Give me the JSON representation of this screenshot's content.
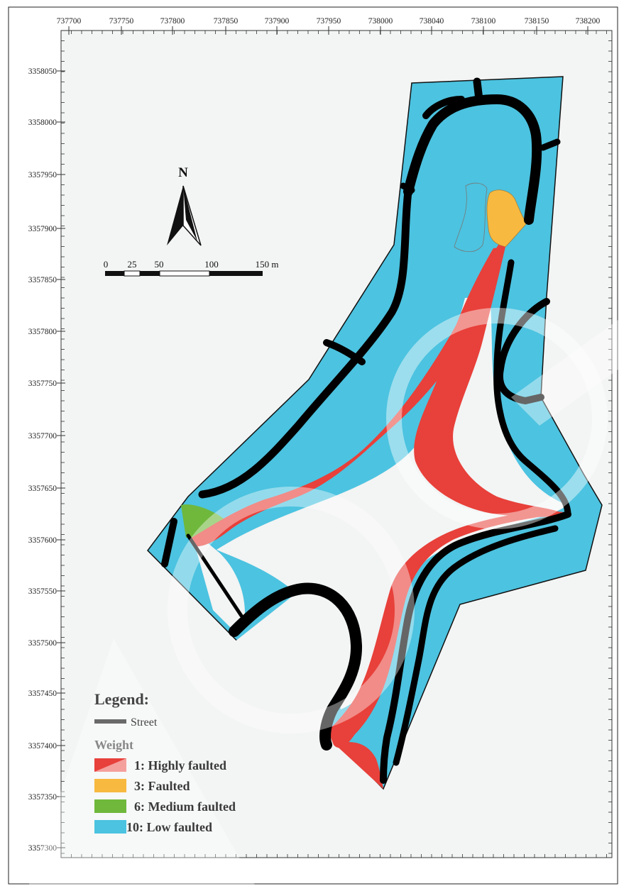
{
  "axes": {
    "x_ticks": [
      "737700",
      "737750",
      "737800",
      "737850",
      "737900",
      "737950",
      "738000",
      "738040",
      "738100",
      "738150",
      "738200"
    ],
    "y_ticks": [
      "3358050",
      "3358000",
      "3357950",
      "3357900",
      "3357850",
      "3357800",
      "3357750",
      "3357700",
      "3357650",
      "3357600",
      "3357550",
      "3357500",
      "3357450",
      "3357400",
      "3357350",
      "3357300"
    ]
  },
  "north_arrow": {
    "label": "N"
  },
  "scale_bar": {
    "labels": [
      "0",
      "25",
      "50",
      "100",
      "150 m"
    ]
  },
  "legend": {
    "title": "Legend:",
    "street_label": "Street",
    "weight_title": "Weight",
    "items": [
      {
        "label": "1: Highly faulted",
        "color": "#e8403a"
      },
      {
        "label": "3: Faulted",
        "color": "#f7b93f"
      },
      {
        "label": "6: Medium faulted",
        "color": "#6fb83b"
      },
      {
        "label": "10: Low faulted",
        "color": "#4cc3e0"
      }
    ]
  },
  "colors": {
    "low": "#4cc3e0",
    "medium": "#6fb83b",
    "faulted": "#f7b93f",
    "highly": "#e8403a",
    "street": "#000000",
    "street_legend": "#6a6a6a"
  }
}
